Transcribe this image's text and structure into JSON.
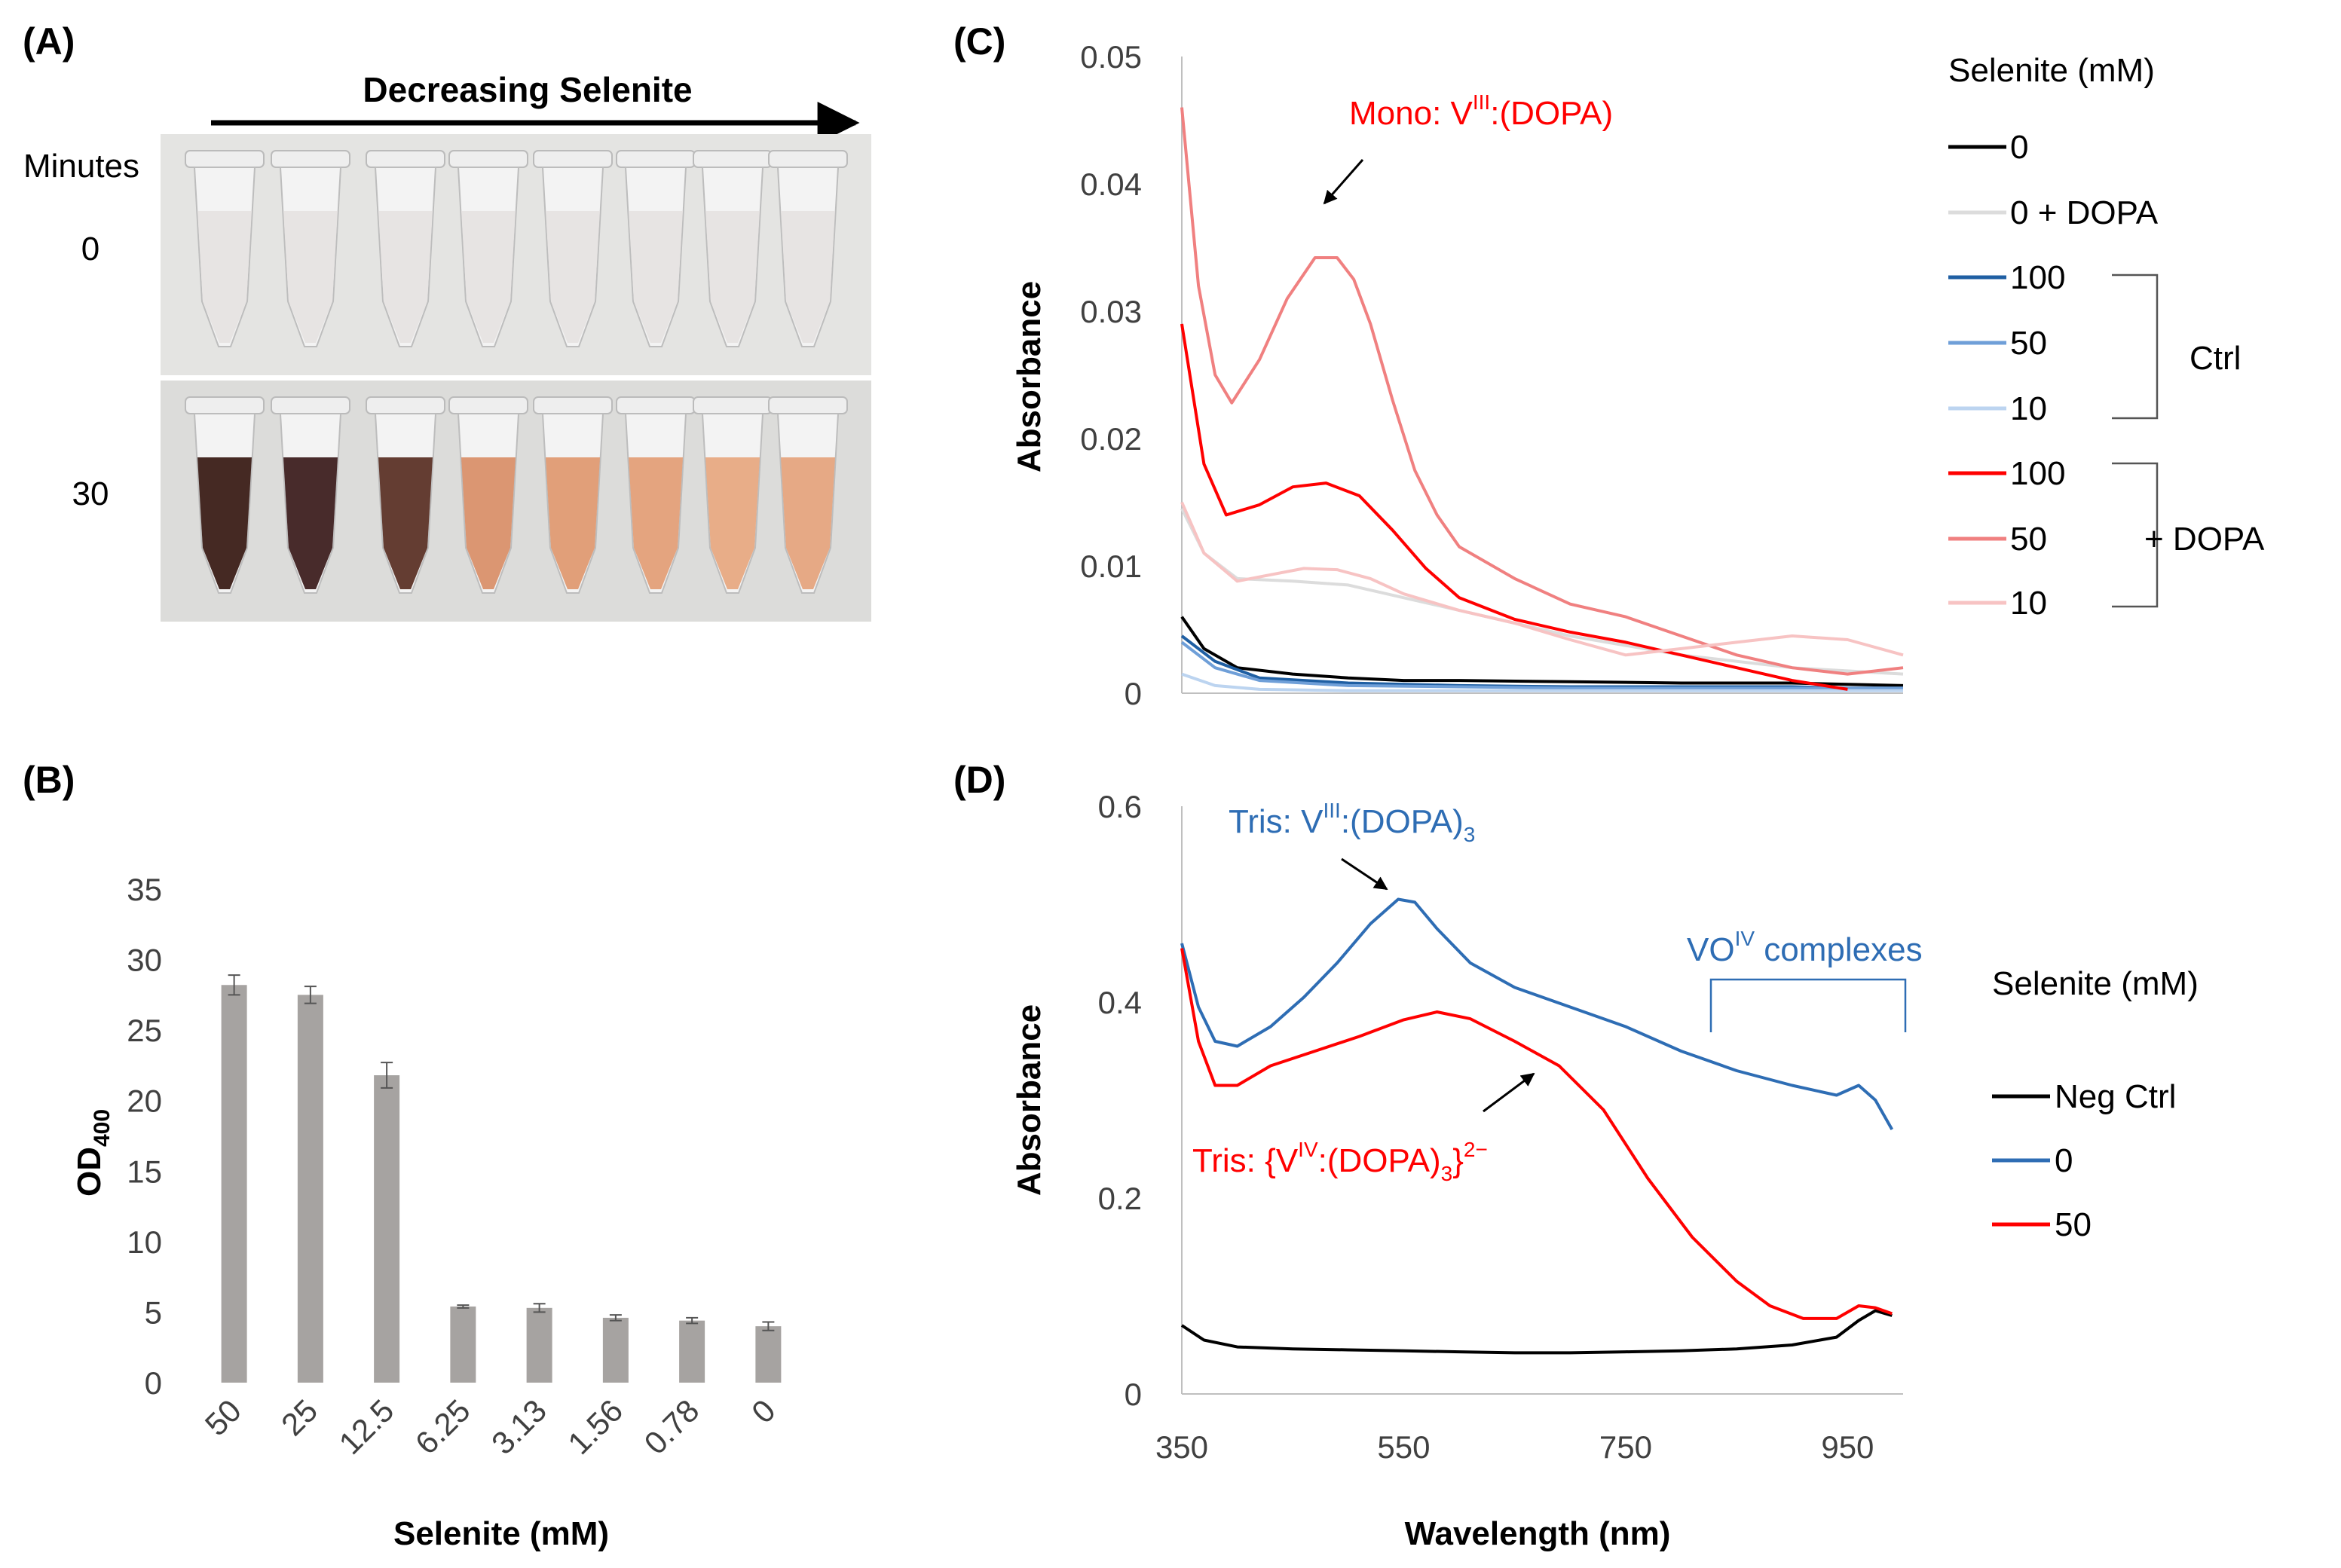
{
  "panel_labels": {
    "a": "(A)",
    "b": "(B)",
    "c": "(C)",
    "d": "(D)"
  },
  "photo": {
    "arrow_label": "Decreasing Selenite",
    "time_header": "Minutes",
    "time_rows": [
      "0",
      "30"
    ],
    "row0_color": "#e6e3e2",
    "row30_colors": [
      "#3b1d17",
      "#3e2020",
      "#5c3327",
      "#d9906a",
      "#df9a72",
      "#e39f78",
      "#e7a982",
      "#e5a47e"
    ]
  },
  "chart_data": [
    {
      "id": "B",
      "type": "bar",
      "categories": [
        "50",
        "25",
        "12.5",
        "6.25",
        "3.13",
        "1.56",
        "0.78",
        "0"
      ],
      "values": [
        28.2,
        27.5,
        21.8,
        5.4,
        5.3,
        4.6,
        4.4,
        4.0
      ],
      "errors": [
        0.7,
        0.6,
        0.9,
        0.1,
        0.3,
        0.2,
        0.2,
        0.3
      ],
      "xlabel": "Selenite (mM)",
      "ylabel": "OD",
      "ylabel_sub": "400",
      "ylim": [
        0,
        35
      ],
      "yticks": [
        0,
        5,
        10,
        15,
        20,
        25,
        30,
        35
      ],
      "bar_color": "#a6a3a1"
    },
    {
      "id": "C",
      "type": "line",
      "ylabel": "Absorbance",
      "xlim": [
        350,
        1000
      ],
      "ylim": [
        0,
        0.05
      ],
      "yticks": [
        "0",
        "0.01",
        "0.02",
        "0.03",
        "0.04",
        "0.05"
      ],
      "annotation": {
        "text": "Mono: V",
        "sup": "III",
        "tail": ":(DOPA)",
        "target": [
          480,
          0.0345
        ]
      },
      "legend_title": "Selenite (mM)",
      "group_labels": {
        "ctrl": "Ctrl",
        "dopa": "+ DOPA"
      },
      "series": [
        {
          "name": "0",
          "color": "#000000",
          "x": [
            350,
            370,
            400,
            450,
            500,
            550,
            600,
            700,
            800,
            900,
            1000
          ],
          "y": [
            0.006,
            0.0035,
            0.002,
            0.0015,
            0.0012,
            0.001,
            0.001,
            0.0009,
            0.0008,
            0.0008,
            0.0006
          ]
        },
        {
          "name": "0 + DOPA",
          "color": "#dcdcdc",
          "x": [
            350,
            370,
            400,
            450,
            500,
            550,
            600,
            650,
            700,
            800,
            900,
            1000
          ],
          "y": [
            0.0145,
            0.011,
            0.009,
            0.0088,
            0.0085,
            0.0075,
            0.0065,
            0.0055,
            0.0045,
            0.003,
            0.002,
            0.0015
          ]
        },
        {
          "name": "100",
          "color": "#1f5fa3",
          "x": [
            350,
            380,
            420,
            500,
            600,
            700,
            800,
            900,
            950,
            1000
          ],
          "y": [
            0.0045,
            0.0025,
            0.0012,
            0.0008,
            0.0006,
            0.0005,
            0.0005,
            0.0005,
            0.0004,
            0.0004
          ]
        },
        {
          "name": "50",
          "color": "#6f9fd8",
          "x": [
            350,
            380,
            420,
            500,
            600,
            700,
            800,
            900,
            1000
          ],
          "y": [
            0.004,
            0.002,
            0.001,
            0.0006,
            0.0005,
            0.0004,
            0.0004,
            0.0004,
            0.0004
          ]
        },
        {
          "name": "10",
          "color": "#bcd4f0",
          "x": [
            350,
            380,
            420,
            500,
            600,
            700,
            800,
            900,
            1000
          ],
          "y": [
            0.0015,
            0.0006,
            0.0003,
            0.0002,
            0.0002,
            0.0002,
            0.0002,
            0.0002,
            0.0002
          ]
        },
        {
          "name": "100",
          "color": "#ff0000",
          "x": [
            350,
            370,
            390,
            420,
            450,
            480,
            510,
            540,
            570,
            600,
            650,
            700,
            750,
            800,
            850,
            900,
            950
          ],
          "y": [
            0.029,
            0.018,
            0.014,
            0.0148,
            0.0162,
            0.0165,
            0.0155,
            0.0128,
            0.0098,
            0.0075,
            0.0058,
            0.0048,
            0.004,
            0.003,
            0.002,
            0.001,
            0.0003
          ]
        },
        {
          "name": "50",
          "color": "#f08080",
          "x": [
            350,
            365,
            380,
            395,
            420,
            445,
            470,
            490,
            505,
            520,
            540,
            560,
            580,
            600,
            650,
            700,
            750,
            800,
            850,
            900,
            950,
            1000
          ],
          "y": [
            0.046,
            0.032,
            0.025,
            0.0228,
            0.0262,
            0.031,
            0.0342,
            0.0342,
            0.0325,
            0.029,
            0.023,
            0.0175,
            0.014,
            0.0115,
            0.009,
            0.007,
            0.006,
            0.0045,
            0.003,
            0.002,
            0.0015,
            0.002
          ]
        },
        {
          "name": "10",
          "color": "#f7c3c3",
          "x": [
            350,
            370,
            400,
            430,
            460,
            490,
            520,
            550,
            600,
            650,
            700,
            750,
            800,
            850,
            900,
            950,
            1000
          ],
          "y": [
            0.015,
            0.011,
            0.0088,
            0.0093,
            0.0098,
            0.0097,
            0.009,
            0.0078,
            0.0065,
            0.0055,
            0.0042,
            0.003,
            0.0035,
            0.004,
            0.0045,
            0.0042,
            0.003
          ]
        }
      ]
    },
    {
      "id": "D",
      "type": "line",
      "xlabel": "Wavelength (nm)",
      "ylabel": "Absorbance",
      "xlim": [
        350,
        1000
      ],
      "ylim": [
        0,
        0.6
      ],
      "xticks": [
        350,
        550,
        750,
        950
      ],
      "yticks": [
        "0",
        "0.2",
        "0.4",
        "0.6"
      ],
      "annotations": [
        {
          "text": "Tris: V",
          "sup": "III",
          "tail": ":(DOPA)",
          "sub": "3",
          "sup2": "",
          "color": "#2e6db4",
          "target": [
            555,
            0.505
          ]
        },
        {
          "text": "Tris: {V",
          "sup": "IV",
          "tail": ":(DOPA)",
          "sub": "3",
          "sup2": "2−",
          "color": "#ff0000",
          "target": [
            650,
            0.33
          ]
        },
        {
          "text": "VO",
          "sup": "IV",
          "tail": " complexes",
          "sub": "",
          "sup2": "",
          "color": "#2e6db4",
          "target": [
            910,
            0.365
          ]
        }
      ],
      "legend_title": "Selenite (mM)",
      "series": [
        {
          "name": "Neg  Ctrl",
          "color": "#000000",
          "x": [
            350,
            370,
            400,
            450,
            500,
            550,
            600,
            650,
            700,
            750,
            800,
            850,
            900,
            940,
            960,
            975,
            990
          ],
          "y": [
            0.07,
            0.055,
            0.048,
            0.046,
            0.045,
            0.044,
            0.043,
            0.042,
            0.042,
            0.043,
            0.044,
            0.046,
            0.05,
            0.058,
            0.075,
            0.085,
            0.08
          ]
        },
        {
          "name": "0",
          "color": "#2e6db4",
          "x": [
            350,
            365,
            380,
            400,
            430,
            460,
            490,
            520,
            545,
            560,
            580,
            610,
            650,
            700,
            750,
            800,
            850,
            900,
            940,
            960,
            975,
            990
          ],
          "y": [
            0.46,
            0.395,
            0.36,
            0.355,
            0.375,
            0.405,
            0.44,
            0.48,
            0.505,
            0.502,
            0.475,
            0.44,
            0.415,
            0.395,
            0.375,
            0.35,
            0.33,
            0.315,
            0.305,
            0.315,
            0.3,
            0.27
          ]
        },
        {
          "name": "50",
          "color": "#ff0000",
          "x": [
            350,
            365,
            380,
            400,
            430,
            470,
            510,
            550,
            580,
            610,
            650,
            690,
            730,
            770,
            810,
            850,
            880,
            910,
            940,
            960,
            975,
            990
          ],
          "y": [
            0.455,
            0.36,
            0.315,
            0.315,
            0.335,
            0.35,
            0.365,
            0.382,
            0.39,
            0.383,
            0.36,
            0.335,
            0.29,
            0.22,
            0.16,
            0.115,
            0.09,
            0.077,
            0.077,
            0.09,
            0.088,
            0.082
          ]
        }
      ]
    }
  ]
}
